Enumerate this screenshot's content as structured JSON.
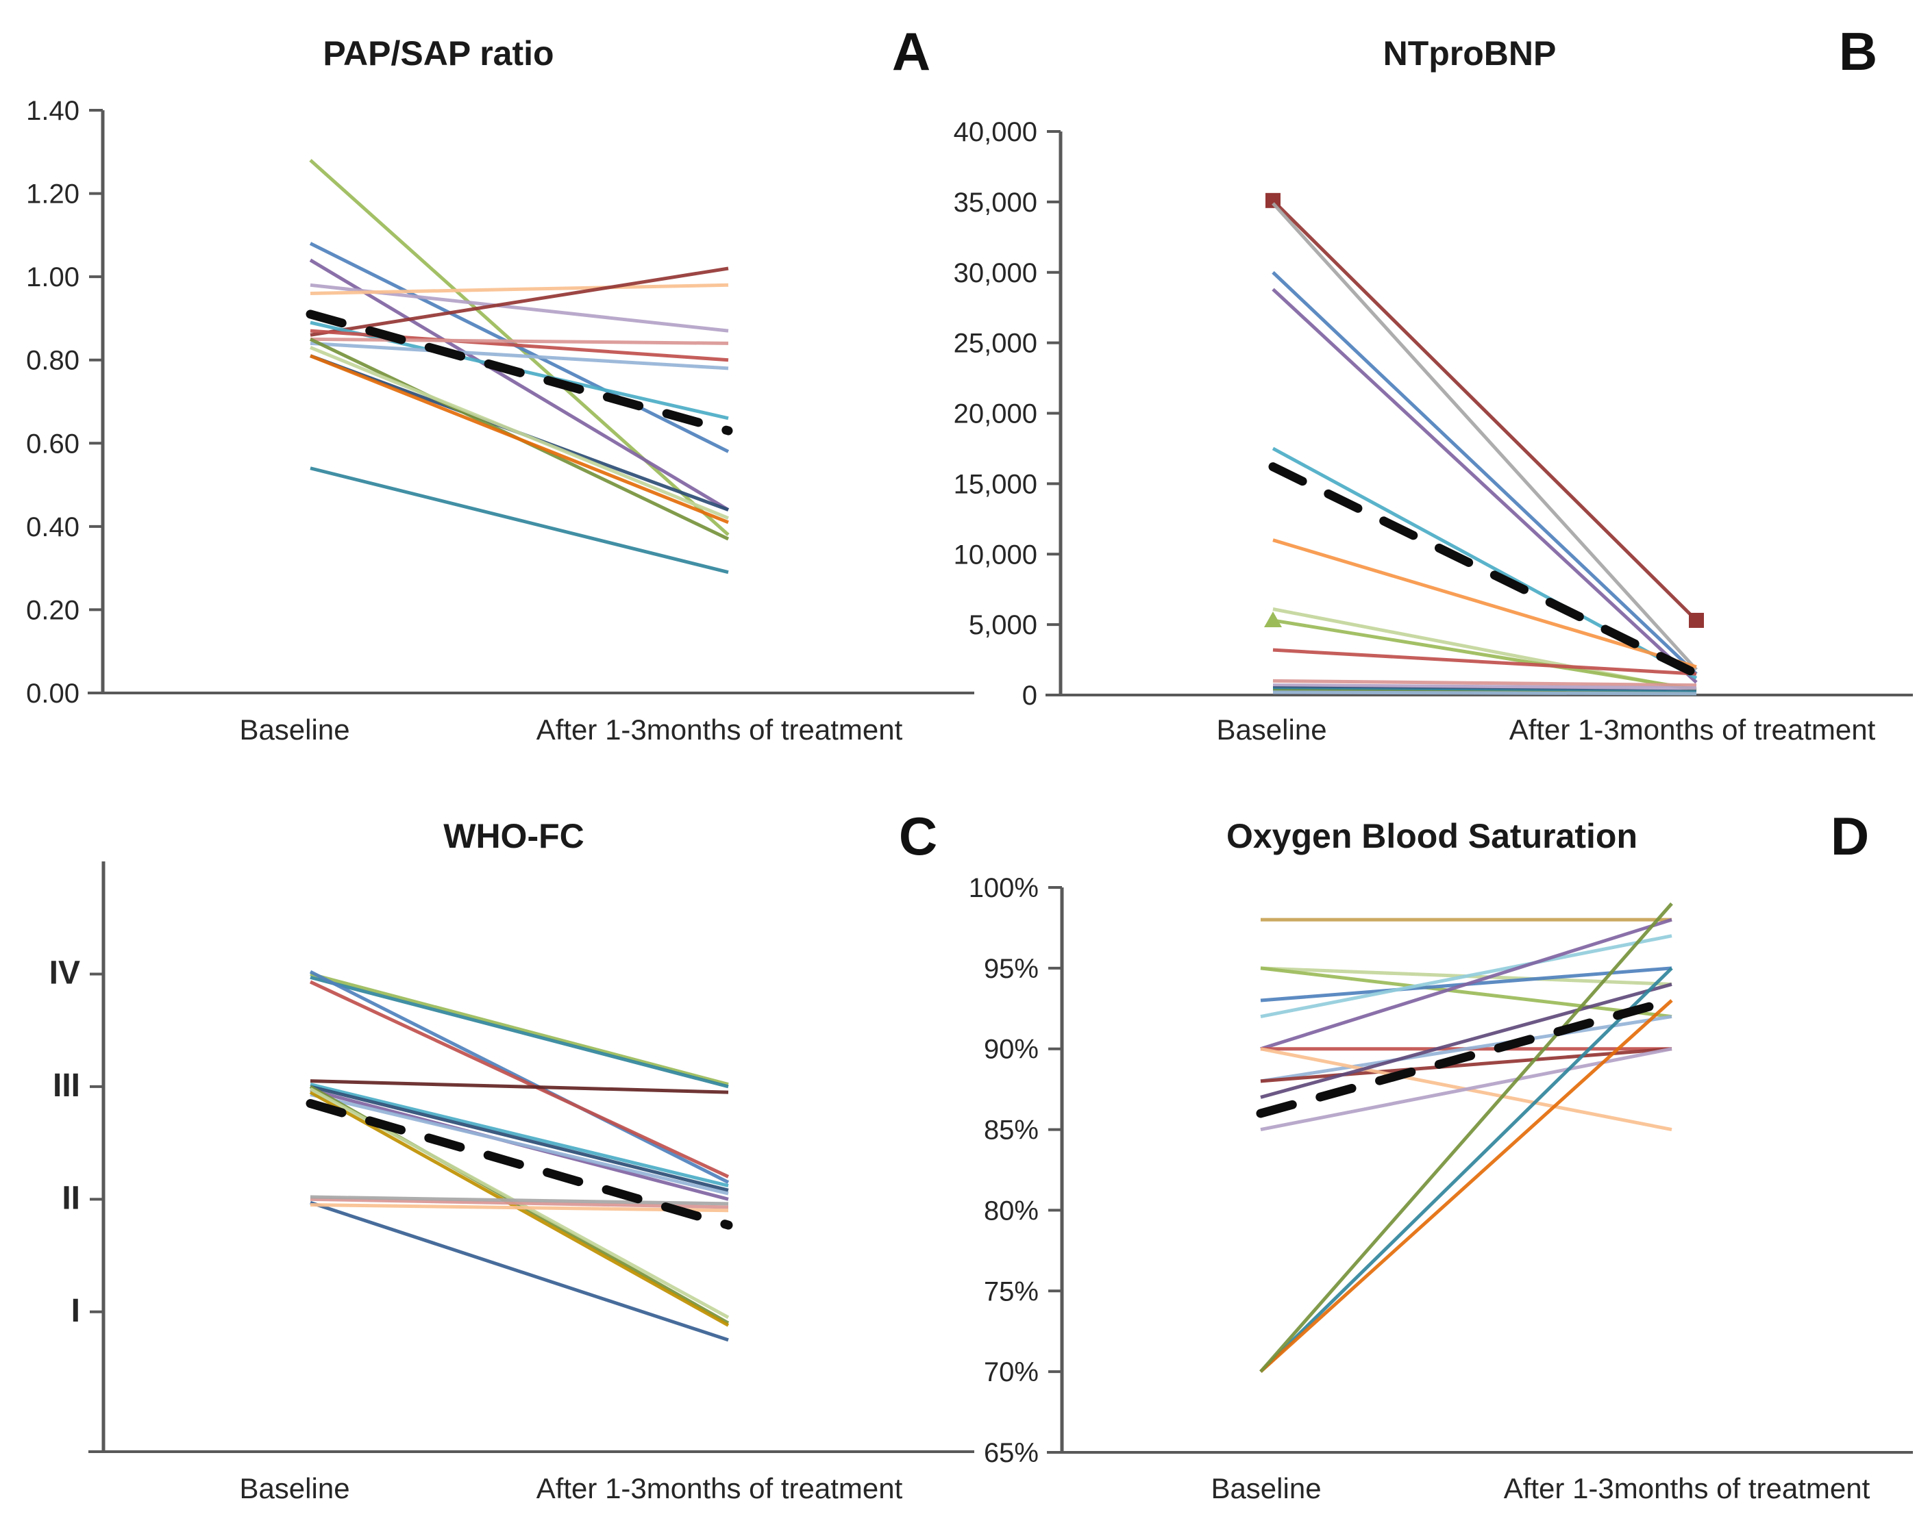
{
  "figure": {
    "x_categories": [
      "Baseline",
      "After 1-3months of treatment"
    ],
    "mean_line_style": "dashed-black",
    "axis_color": "#595959",
    "text_color": "#262626"
  },
  "chart_data": [
    {
      "type": "line",
      "panel": "A",
      "letter": "A",
      "title": "PAP/SAP ratio",
      "x": [
        "Baseline",
        "After 1-3months of treatment"
      ],
      "ylim": [
        0.0,
        1.4
      ],
      "yticks": [
        {
          "label": "0.00",
          "value": 0.0
        },
        {
          "label": "0.20",
          "value": 0.2
        },
        {
          "label": "0.40",
          "value": 0.4
        },
        {
          "label": "0.60",
          "value": 0.6
        },
        {
          "label": "0.80",
          "value": 0.8
        },
        {
          "label": "1.00",
          "value": 1.0
        },
        {
          "label": "1.20",
          "value": 1.2
        },
        {
          "label": "1.40",
          "value": 1.4
        }
      ],
      "series": [
        {
          "color": "#9BBB59",
          "values": [
            1.28,
            0.38
          ]
        },
        {
          "color": "#4F81BD",
          "values": [
            1.08,
            0.58
          ]
        },
        {
          "color": "#8064A2",
          "values": [
            1.04,
            0.44
          ]
        },
        {
          "color": "#B3A2C7",
          "values": [
            0.98,
            0.87
          ]
        },
        {
          "color": "#FAC090",
          "values": [
            0.96,
            0.98
          ]
        },
        {
          "color": "#943634",
          "values": [
            0.86,
            1.02
          ]
        },
        {
          "color": "#4BACC6",
          "values": [
            0.89,
            0.66
          ]
        },
        {
          "color": "#C0504D",
          "values": [
            0.87,
            0.8
          ]
        },
        {
          "color": "#95B3D7",
          "values": [
            0.84,
            0.78
          ]
        },
        {
          "color": "#D99694",
          "values": [
            0.85,
            0.84
          ]
        },
        {
          "color": "#2C4D75",
          "values": [
            0.81,
            0.44
          ]
        },
        {
          "color": "#76923C",
          "values": [
            0.85,
            0.37
          ]
        },
        {
          "color": "#C3D69B",
          "values": [
            0.83,
            0.42
          ]
        },
        {
          "color": "#E46C0A",
          "values": [
            0.81,
            0.41
          ]
        },
        {
          "color": "#31859C",
          "values": [
            0.54,
            0.29
          ]
        }
      ],
      "mean_series": {
        "style": "dashed-black",
        "values": [
          0.91,
          0.63
        ]
      }
    },
    {
      "type": "line",
      "panel": "B",
      "letter": "B",
      "title": "NTproBNP",
      "x": [
        "Baseline",
        "After 1-3months of treatment"
      ],
      "ylim": [
        0,
        40000
      ],
      "yticks": [
        {
          "label": "0",
          "value": 0
        },
        {
          "label": "5,000",
          "value": 5000
        },
        {
          "label": "10,000",
          "value": 10000
        },
        {
          "label": "15,000",
          "value": 15000
        },
        {
          "label": "20,000",
          "value": 20000
        },
        {
          "label": "25,000",
          "value": 25000
        },
        {
          "label": "30,000",
          "value": 30000
        },
        {
          "label": "35,000",
          "value": 35000
        },
        {
          "label": "40,000",
          "value": 40000
        }
      ],
      "series": [
        {
          "color": "#943634",
          "values": [
            35100,
            5300
          ],
          "marker": "square-both"
        },
        {
          "color": "#A6A6A6",
          "values": [
            34900,
            1800
          ]
        },
        {
          "color": "#4F81BD",
          "values": [
            30000,
            1500
          ]
        },
        {
          "color": "#8064A2",
          "values": [
            28800,
            900
          ]
        },
        {
          "color": "#4BACC6",
          "values": [
            17500,
            1200
          ]
        },
        {
          "color": "#F79646",
          "values": [
            11000,
            2000
          ]
        },
        {
          "color": "#C3D69B",
          "values": [
            6100,
            300
          ]
        },
        {
          "color": "#9BBB59",
          "values": [
            5300,
            400
          ],
          "marker": "triangle-start"
        },
        {
          "color": "#C0504D",
          "values": [
            3200,
            1500
          ]
        },
        {
          "color": "#D99694",
          "values": [
            1000,
            700
          ]
        },
        {
          "color": "#B3A2C7",
          "values": [
            700,
            500
          ]
        },
        {
          "color": "#2C4D75",
          "values": [
            500,
            250
          ]
        },
        {
          "color": "#31859C",
          "values": [
            400,
            200
          ]
        },
        {
          "color": "#76923C",
          "values": [
            300,
            100
          ]
        },
        {
          "color": "#95B3D7",
          "values": [
            200,
            100
          ]
        }
      ],
      "mean_series": {
        "style": "dashed-black",
        "values": [
          16200,
          1500
        ]
      }
    },
    {
      "type": "line",
      "panel": "C",
      "letter": "C",
      "title": "WHO-FC",
      "x": [
        "Baseline",
        "After 1-3months of treatment"
      ],
      "ylim": [
        0,
        5
      ],
      "yticks": [
        {
          "label": "I",
          "value": 1
        },
        {
          "label": "II",
          "value": 2
        },
        {
          "label": "III",
          "value": 3
        },
        {
          "label": "IV",
          "value": 4
        }
      ],
      "series": [
        {
          "color": "#9BBB59",
          "values": [
            4.0,
            3.02
          ]
        },
        {
          "color": "#31859C",
          "values": [
            3.97,
            3.0
          ]
        },
        {
          "color": "#4F81BD",
          "values": [
            4.02,
            2.15
          ]
        },
        {
          "color": "#C0504D",
          "values": [
            3.93,
            2.2
          ]
        },
        {
          "color": "#632423",
          "values": [
            3.05,
            2.95
          ]
        },
        {
          "color": "#4BACC6",
          "values": [
            3.02,
            2.12
          ]
        },
        {
          "color": "#2C4D75",
          "values": [
            3.0,
            2.08
          ]
        },
        {
          "color": "#8064A2",
          "values": [
            2.97,
            2.0
          ]
        },
        {
          "color": "#95B3D7",
          "values": [
            2.93,
            2.05
          ]
        },
        {
          "color": "#76923C",
          "values": [
            3.0,
            0.9
          ]
        },
        {
          "color": "#BF9000",
          "values": [
            2.95,
            0.88
          ]
        },
        {
          "color": "#C3D69B",
          "values": [
            2.98,
            0.95
          ]
        },
        {
          "color": "#376092",
          "values": [
            1.97,
            0.75
          ]
        },
        {
          "color": "#D99694",
          "values": [
            2.0,
            1.93
          ]
        },
        {
          "color": "#FAC090",
          "values": [
            1.95,
            1.9
          ]
        },
        {
          "color": "#A6A6A6",
          "values": [
            2.02,
            1.96
          ]
        }
      ],
      "mean_series": {
        "style": "dashed-black",
        "values": [
          2.85,
          1.77
        ]
      }
    },
    {
      "type": "line",
      "panel": "D",
      "letter": "D",
      "title": "Oxygen Blood Saturation",
      "x": [
        "Baseline",
        "After 1-3months of treatment"
      ],
      "ylim": [
        65,
        100
      ],
      "yticks": [
        {
          "label": "65%",
          "value": 65
        },
        {
          "label": "70%",
          "value": 70
        },
        {
          "label": "75%",
          "value": 75
        },
        {
          "label": "80%",
          "value": 80
        },
        {
          "label": "85%",
          "value": 85
        },
        {
          "label": "90%",
          "value": 90
        },
        {
          "label": "95%",
          "value": 95
        },
        {
          "label": "100%",
          "value": 100
        }
      ],
      "series": [
        {
          "color": "#C7A252",
          "values": [
            98,
            98
          ]
        },
        {
          "color": "#C3D69B",
          "values": [
            95,
            94
          ]
        },
        {
          "color": "#9BBB59",
          "values": [
            95,
            92
          ]
        },
        {
          "color": "#4F81BD",
          "values": [
            93,
            95
          ]
        },
        {
          "color": "#92CDDC",
          "values": [
            92,
            97
          ]
        },
        {
          "color": "#8064A2",
          "values": [
            90,
            98
          ]
        },
        {
          "color": "#C0504D",
          "values": [
            90,
            90
          ]
        },
        {
          "color": "#95B3D7",
          "values": [
            88,
            92
          ]
        },
        {
          "color": "#943634",
          "values": [
            88,
            90
          ]
        },
        {
          "color": "#FAC090",
          "values": [
            90,
            85
          ]
        },
        {
          "color": "#B3A2C7",
          "values": [
            85,
            90
          ]
        },
        {
          "color": "#604A7B",
          "values": [
            87,
            94
          ]
        },
        {
          "color": "#31859C",
          "values": [
            70,
            95
          ]
        },
        {
          "color": "#E46C0A",
          "values": [
            70,
            93
          ]
        },
        {
          "color": "#76923C",
          "values": [
            70,
            99
          ]
        }
      ],
      "mean_series": {
        "style": "dashed-black",
        "values": [
          86,
          93
        ]
      }
    }
  ]
}
